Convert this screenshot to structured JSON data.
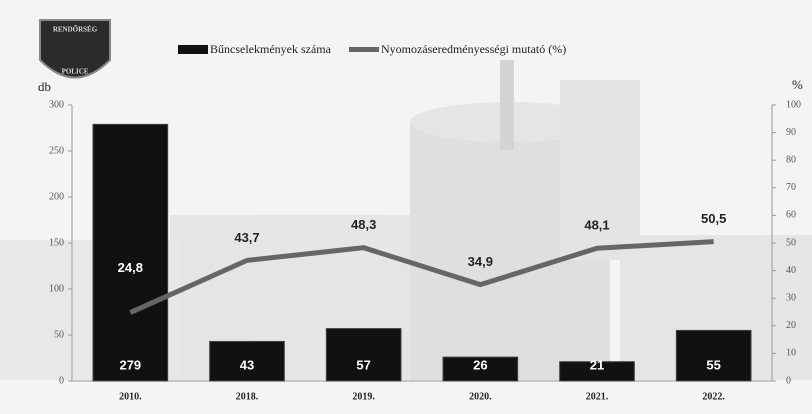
{
  "logo": {
    "top": "RENDŐRSÉG",
    "bottom": "POLICE"
  },
  "chart_data": {
    "type": "combo",
    "categories": [
      "2010.",
      "2018.",
      "2019.",
      "2020.",
      "2021.",
      "2022."
    ],
    "series": [
      {
        "name": "Bűncselekmények száma",
        "type": "bar",
        "color": "#111111",
        "values": [
          279,
          43,
          57,
          26,
          21,
          55
        ]
      },
      {
        "name": "Nyomozáseredményességi mutató (%)",
        "type": "line",
        "axis": "y2",
        "color": "#666666",
        "values": [
          24.8,
          43.7,
          48.3,
          34.9,
          48.1,
          50.5
        ],
        "value_labels": [
          "24,8",
          "43,7",
          "48,3",
          "34,9",
          "48,1",
          "50,5"
        ]
      }
    ],
    "ylabel": "db",
    "y2label": "%",
    "ylim": [
      0,
      300
    ],
    "yticks": [
      0,
      50,
      100,
      150,
      200,
      250,
      300
    ],
    "y2lim": [
      0,
      100
    ],
    "y2ticks": [
      0,
      10,
      20,
      30,
      40,
      50,
      60,
      70,
      80,
      90,
      100
    ]
  }
}
